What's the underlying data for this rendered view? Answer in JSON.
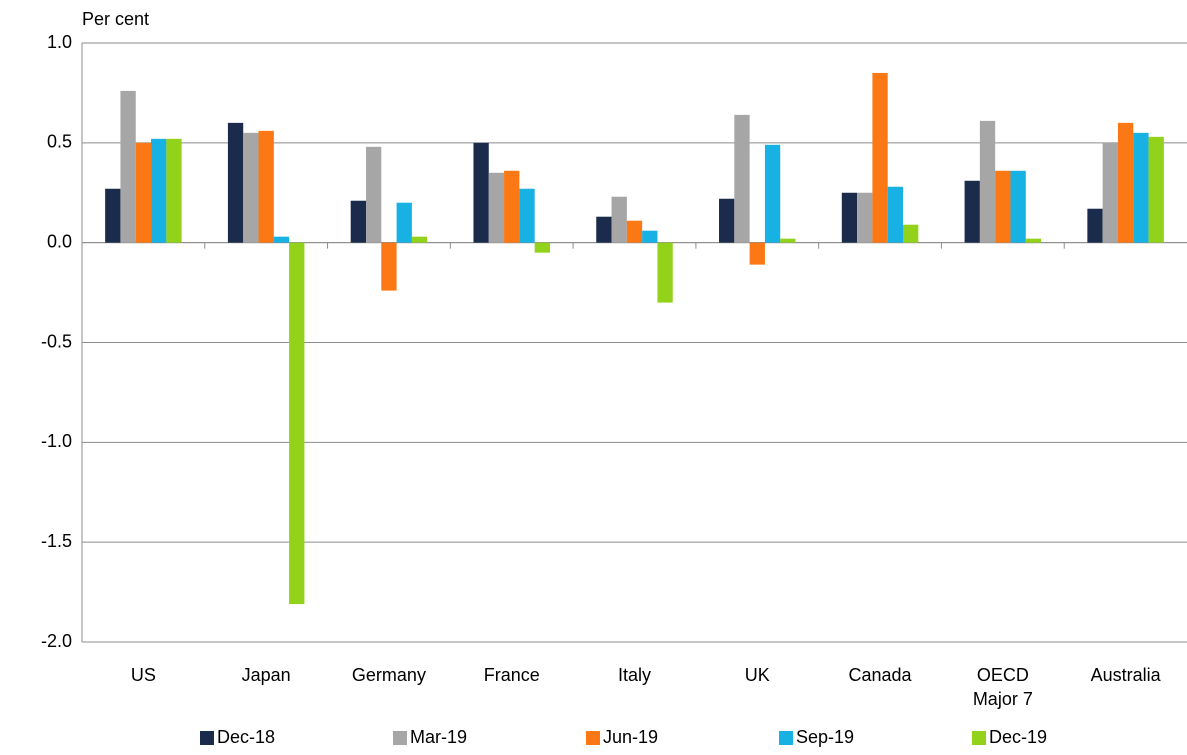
{
  "chart_data": {
    "type": "bar",
    "y_axis_label": "Per cent",
    "categories": [
      "US",
      "Japan",
      "Germany",
      "France",
      "Italy",
      "UK",
      "Canada",
      "OECD Major 7",
      "Australia"
    ],
    "series": [
      {
        "name": "Dec-18",
        "color": "#1b2b4b",
        "values": [
          0.27,
          0.6,
          0.21,
          0.5,
          0.13,
          0.22,
          0.25,
          0.31,
          0.17
        ]
      },
      {
        "name": "Mar-19",
        "color": "#a6a6a6",
        "values": [
          0.76,
          0.55,
          0.48,
          0.35,
          0.23,
          0.64,
          0.25,
          0.61,
          0.5
        ]
      },
      {
        "name": "Jun-19",
        "color": "#fb7814",
        "values": [
          0.5,
          0.56,
          -0.24,
          0.36,
          0.11,
          -0.11,
          0.85,
          0.36,
          0.6
        ]
      },
      {
        "name": "Sep-19",
        "color": "#18b1e3",
        "values": [
          0.52,
          0.03,
          0.2,
          0.27,
          0.06,
          0.49,
          0.28,
          0.36,
          0.55
        ]
      },
      {
        "name": "Dec-19",
        "color": "#92d21b",
        "values": [
          0.52,
          -1.81,
          0.03,
          -0.05,
          -0.3,
          0.02,
          0.09,
          0.02,
          0.53
        ]
      }
    ],
    "ylim": [
      -2.0,
      1.0
    ],
    "yticks": [
      {
        "value": -2.0,
        "label": "-2.0"
      },
      {
        "value": -1.5,
        "label": "-1.5"
      },
      {
        "value": -1.0,
        "label": "-1.0"
      },
      {
        "value": -0.5,
        "label": "-0.5"
      },
      {
        "value": 0.0,
        "label": "0.0"
      },
      {
        "value": 0.5,
        "label": "0.5"
      },
      {
        "value": 1.0,
        "label": "1.0"
      }
    ],
    "grid": true,
    "legend": "bottom"
  }
}
